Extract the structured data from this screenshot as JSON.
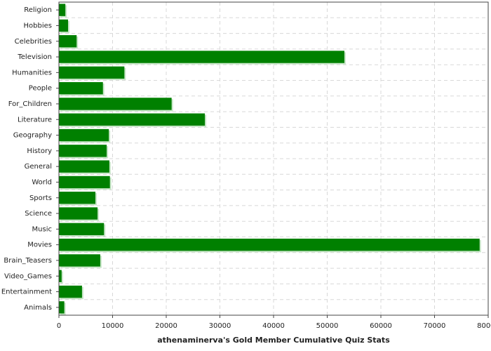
{
  "chart_data": {
    "type": "barh",
    "title": "athenaminerva's Gold Member Cumulative Quiz Stats",
    "categories": [
      "Religion",
      "Hobbies",
      "Celebrities",
      "Television",
      "Humanities",
      "People",
      "For_Children",
      "Literature",
      "Geography",
      "History",
      "General",
      "World",
      "Sports",
      "Science",
      "Music",
      "Movies",
      "Brain_Teasers",
      "Video_Games",
      "Entertainment",
      "Animals"
    ],
    "values": [
      1200,
      1700,
      3300,
      53200,
      12200,
      8200,
      21000,
      27200,
      9300,
      8900,
      9400,
      9500,
      6800,
      7200,
      8400,
      78400,
      7700,
      500,
      4300,
      1000
    ],
    "color": "#008000",
    "xlim": [
      0,
      80000
    ],
    "xticks": [
      0,
      10000,
      20000,
      30000,
      40000,
      50000,
      60000,
      70000,
      80000
    ],
    "grid": true
  }
}
